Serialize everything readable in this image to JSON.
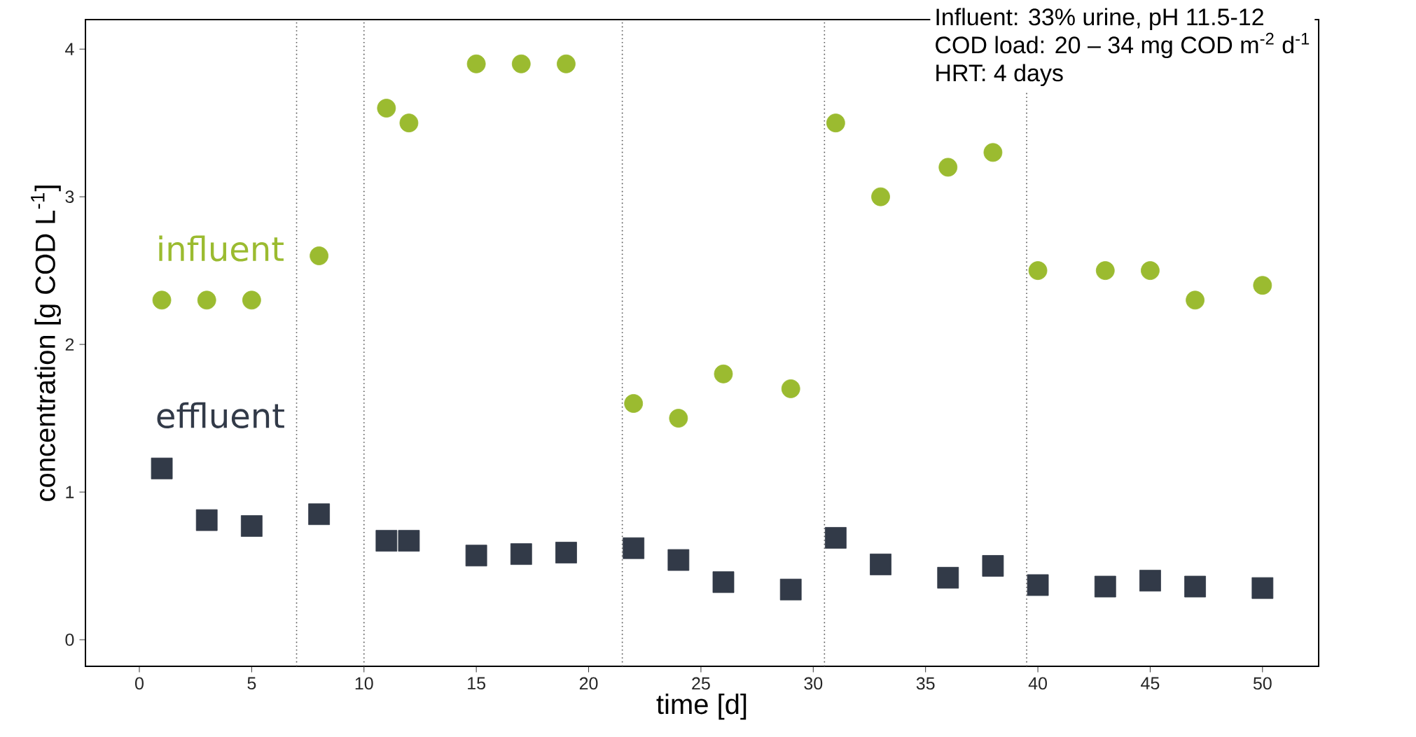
{
  "chart_data": {
    "type": "scatter",
    "xlabel": "time [d]",
    "ylabel": "concentration [g COD L$^{-1}$]",
    "x": [
      1,
      3,
      5,
      8,
      11,
      12,
      15,
      17,
      19,
      22,
      24,
      26,
      29,
      31,
      33,
      36,
      38,
      40,
      43,
      45,
      47,
      50
    ],
    "series": [
      {
        "name": "influent",
        "color": "#9bbb30",
        "marker": "circle",
        "values": [
          2.3,
          2.3,
          2.3,
          2.6,
          3.6,
          3.5,
          3.9,
          3.9,
          3.9,
          1.6,
          1.5,
          1.8,
          1.7,
          3.5,
          3.0,
          3.2,
          3.3,
          2.5,
          2.5,
          2.5,
          2.3,
          2.4
        ]
      },
      {
        "name": "effluent",
        "color": "#323a48",
        "marker": "square",
        "values": [
          1.16,
          0.81,
          0.77,
          0.85,
          0.67,
          0.67,
          0.57,
          0.58,
          0.59,
          0.62,
          0.54,
          0.39,
          0.34,
          0.69,
          0.51,
          0.42,
          0.5,
          0.37,
          0.36,
          0.4,
          0.36,
          0.35
        ]
      }
    ],
    "xlim": [
      -2.4,
      52.5
    ],
    "ylim": [
      -0.18,
      4.2
    ],
    "xticks": [
      0,
      5,
      10,
      15,
      20,
      25,
      30,
      35,
      40,
      45,
      50
    ],
    "yticks": [
      0,
      1,
      2,
      3,
      4
    ],
    "grid": false,
    "legend": "left",
    "ref_lines": [
      {
        "axis": "x",
        "value": 7,
        "line_style": "dotted",
        "color": "#555555"
      },
      {
        "axis": "x",
        "value": 10,
        "line_style": "dotted",
        "color": "#555555"
      },
      {
        "axis": "x",
        "value": 21.5,
        "line_style": "dotted",
        "color": "#555555"
      },
      {
        "axis": "x",
        "value": 30.5,
        "line_style": "dotted",
        "color": "#555555"
      },
      {
        "axis": "x",
        "value": 39.5,
        "line_style": "dotted",
        "color": "#555555"
      }
    ],
    "annotations": [
      "Influent: 33% urine, pH 11.5-12",
      "COD load: 20 – 34 mg COD m$^{-2}$ d$^{-1}$",
      "HRT: 4 days"
    ]
  }
}
